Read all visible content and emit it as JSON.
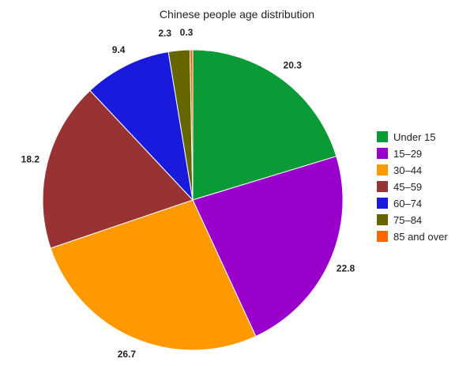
{
  "chart_data": {
    "type": "pie",
    "title": "Chinese people age distribution",
    "categories": [
      "Under 15",
      "15–29",
      "30–44",
      "45–59",
      "60–74",
      "75–84",
      "85 and over"
    ],
    "values": [
      20.3,
      22.8,
      26.7,
      18.2,
      9.4,
      2.3,
      0.3
    ],
    "data_labels": [
      "20.3",
      "22.8",
      "26.7",
      "18.2",
      "9.4",
      "2.3",
      "0.3"
    ],
    "colors": [
      "#0a9a36",
      "#9a00cc",
      "#ff9900",
      "#993333",
      "#1a1adc",
      "#666600",
      "#ff6600"
    ],
    "start_angle_deg": 0,
    "direction": "clockwise",
    "legend": "right"
  }
}
